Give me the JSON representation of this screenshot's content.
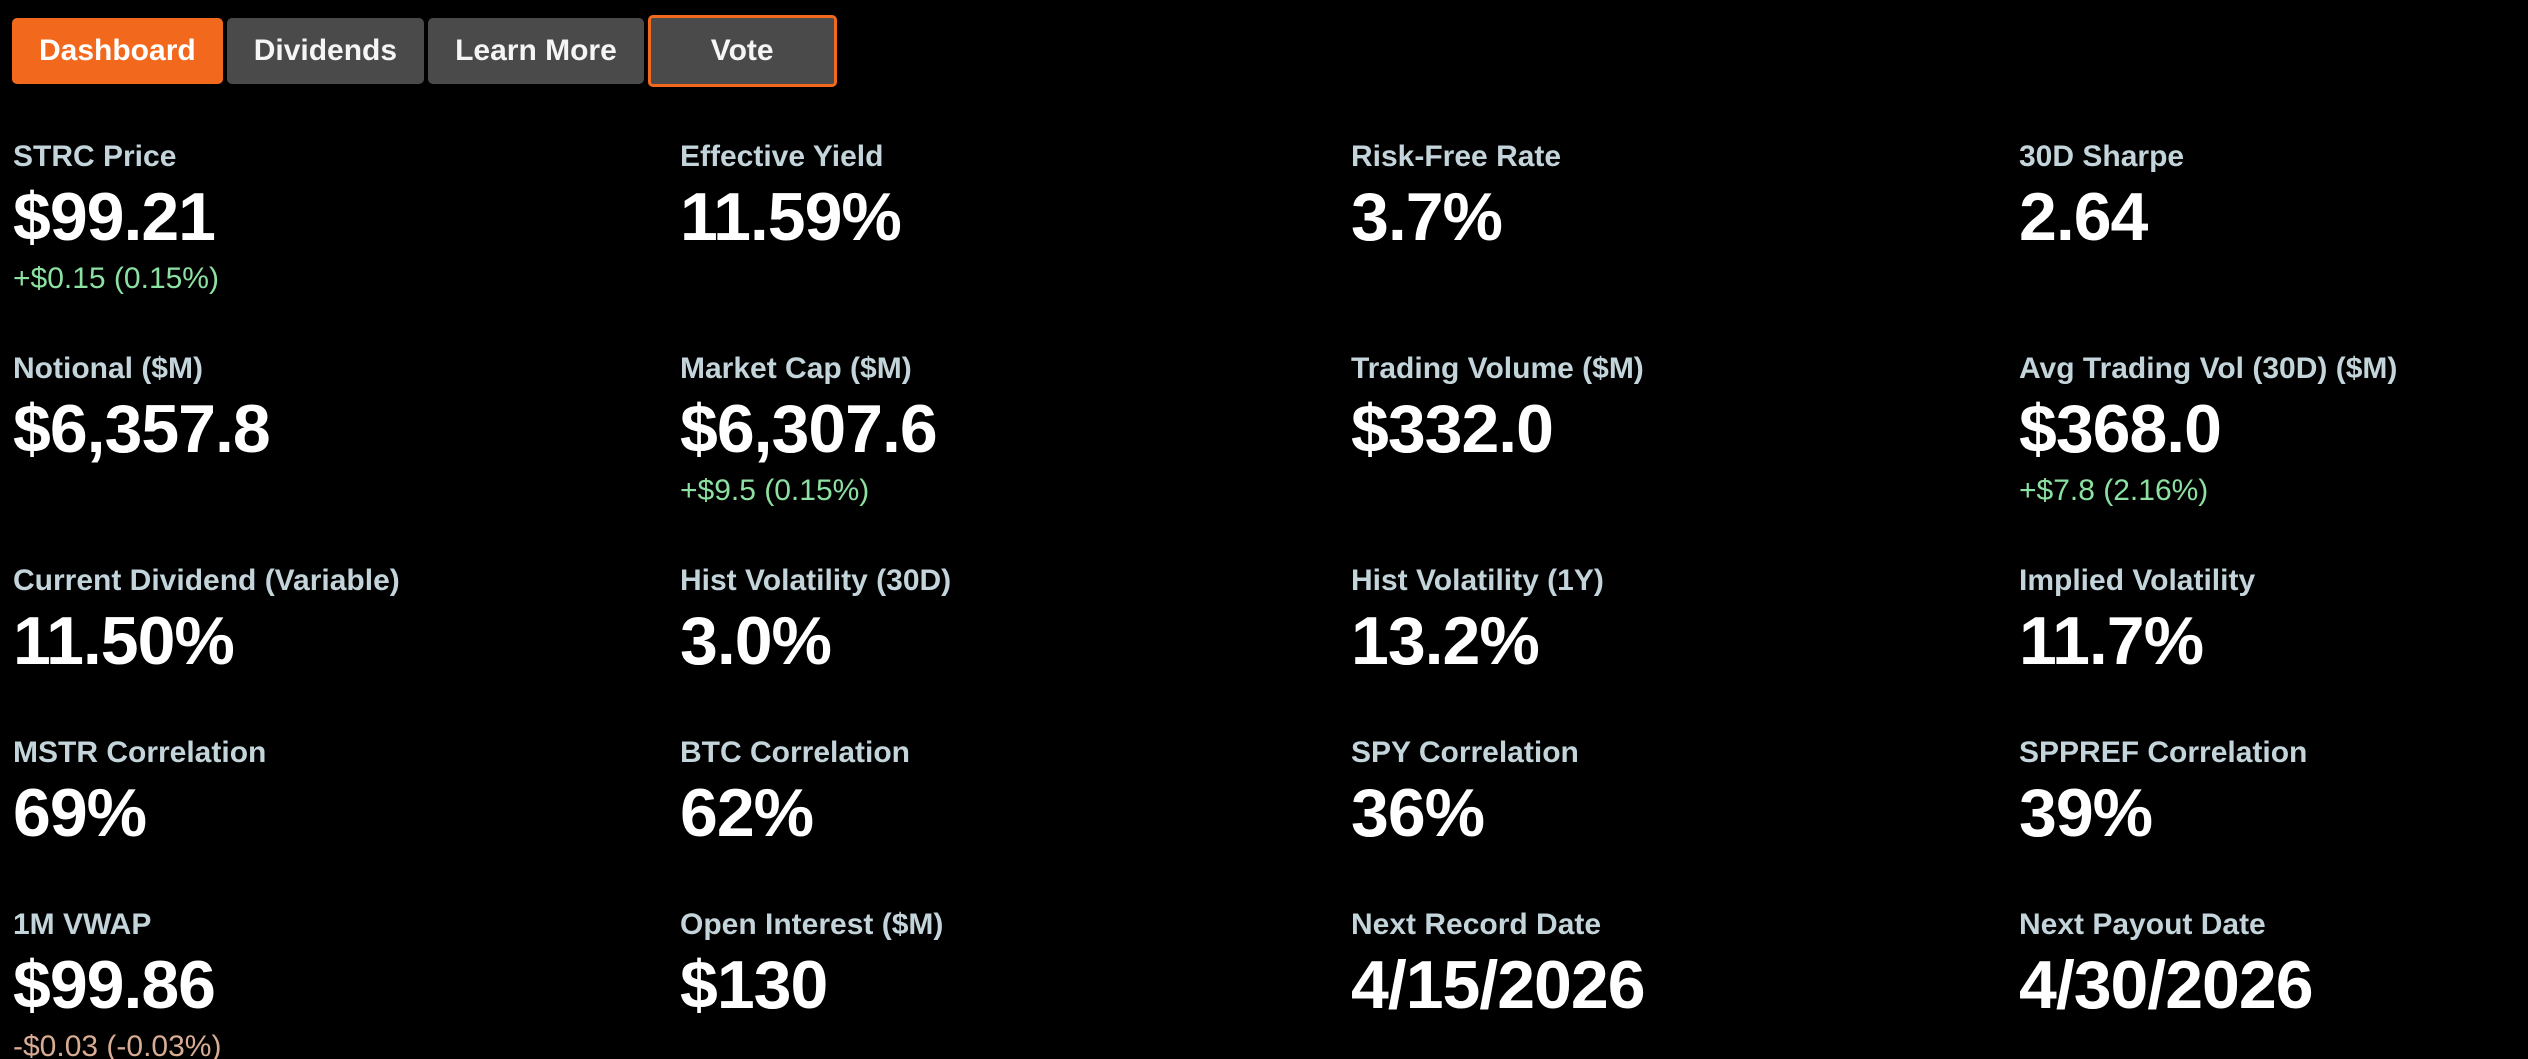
{
  "tabs": [
    {
      "label": "Dashboard",
      "active": true,
      "variant": "filled"
    },
    {
      "label": "Dividends",
      "active": false,
      "variant": "default"
    },
    {
      "label": "Learn More",
      "active": false,
      "variant": "default"
    },
    {
      "label": "Vote",
      "active": false,
      "variant": "outlined"
    }
  ],
  "metrics": [
    [
      {
        "label": "STRC Price",
        "value": "$99.21",
        "change": "+$0.15 (0.15%)",
        "change_dir": "up"
      },
      {
        "label": "Effective Yield",
        "value": "11.59%"
      },
      {
        "label": "Risk-Free Rate",
        "value": "3.7%"
      },
      {
        "label": "30D Sharpe",
        "value": "2.64"
      }
    ],
    [
      {
        "label": "Notional ($M)",
        "value": "$6,357.8"
      },
      {
        "label": "Market Cap ($M)",
        "value": "$6,307.6",
        "change": "+$9.5 (0.15%)",
        "change_dir": "up"
      },
      {
        "label": "Trading Volume ($M)",
        "value": "$332.0"
      },
      {
        "label": "Avg Trading Vol (30D) ($M)",
        "value": "$368.0",
        "change": "+$7.8 (2.16%)",
        "change_dir": "up"
      }
    ],
    [
      {
        "label": "Current Dividend (Variable)",
        "value": "11.50%"
      },
      {
        "label": "Hist Volatility (30D)",
        "value": "3.0%"
      },
      {
        "label": "Hist Volatility (1Y)",
        "value": "13.2%"
      },
      {
        "label": "Implied Volatility",
        "value": "11.7%"
      }
    ],
    [
      {
        "label": "MSTR Correlation",
        "value": "69%"
      },
      {
        "label": "BTC Correlation",
        "value": "62%"
      },
      {
        "label": "SPY Correlation",
        "value": "36%"
      },
      {
        "label": "SPPREF Correlation",
        "value": "39%"
      }
    ],
    [
      {
        "label": "1M VWAP",
        "value": "$99.86",
        "change": "-$0.03 (-0.03%)",
        "change_dir": "down"
      },
      {
        "label": "Open Interest ($M)",
        "value": "$130"
      },
      {
        "label": "Next Record Date",
        "value": "4/15/2026"
      },
      {
        "label": "Next Payout Date",
        "value": "4/30/2026"
      }
    ]
  ],
  "colors": {
    "accent": "#f2691d",
    "tab_bg": "#4a4a4a",
    "label": "#c3d4da",
    "value": "#ffffff",
    "positive": "#8ce0a2",
    "negative": "#d8ab93",
    "page_bg": "#000000"
  }
}
